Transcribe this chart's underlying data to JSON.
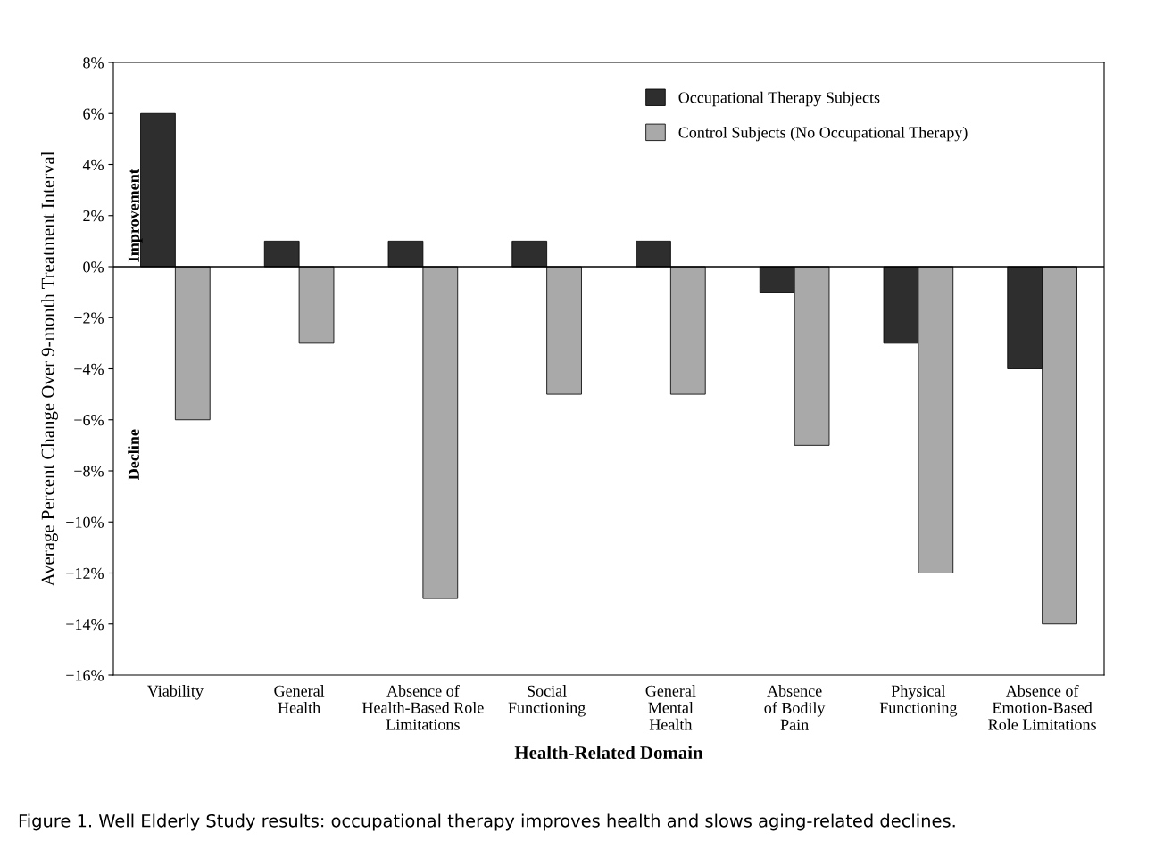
{
  "chart_data": {
    "type": "bar",
    "categories": [
      "Viability",
      "General\nHealth",
      "Absence of\nHealth-Based Role\nLimitations",
      "Social\nFunctioning",
      "General\nMental\nHealth",
      "Absence\nof Bodily\nPain",
      "Physical\nFunctioning",
      "Absence of\nEmotion-Based\nRole Limitations"
    ],
    "series": [
      {
        "name": "Occupational Therapy Subjects",
        "color": "#2e2e2e",
        "values": [
          6,
          1,
          1,
          1,
          1,
          -1,
          -3,
          -4
        ]
      },
      {
        "name": "Control Subjects (No Occupational Therapy)",
        "color": "#a9a9a9",
        "values": [
          -6,
          -3,
          -13,
          -5,
          -5,
          -7,
          -12,
          -14
        ]
      }
    ],
    "xlabel": "Health-Related Domain",
    "ylabel": "Average Percent Change Over 9-month Treatment Interval",
    "ylim": [
      -16,
      8
    ],
    "yticks": [
      {
        "value": -16,
        "label": "−16%"
      },
      {
        "value": -14,
        "label": "−14%"
      },
      {
        "value": -12,
        "label": "−12%"
      },
      {
        "value": -10,
        "label": "−10%"
      },
      {
        "value": -8,
        "label": "−8%"
      },
      {
        "value": -6,
        "label": "−6%"
      },
      {
        "value": -4,
        "label": "−4%"
      },
      {
        "value": -2,
        "label": "−2%"
      },
      {
        "value": 0,
        "label": "0%"
      },
      {
        "value": 2,
        "label": "2%"
      },
      {
        "value": 4,
        "label": "4%"
      },
      {
        "value": 6,
        "label": "6%"
      },
      {
        "value": 8,
        "label": "8%"
      }
    ],
    "ref_lines": [
      {
        "axis": "y",
        "value": 0,
        "color": "#000000"
      }
    ],
    "annotations": [
      "Improvement",
      "Decline",
      "Figure 1. Well Elderly Study results: occupational therapy improves health and slows aging-related declines."
    ],
    "legend": "top",
    "grid": false
  }
}
